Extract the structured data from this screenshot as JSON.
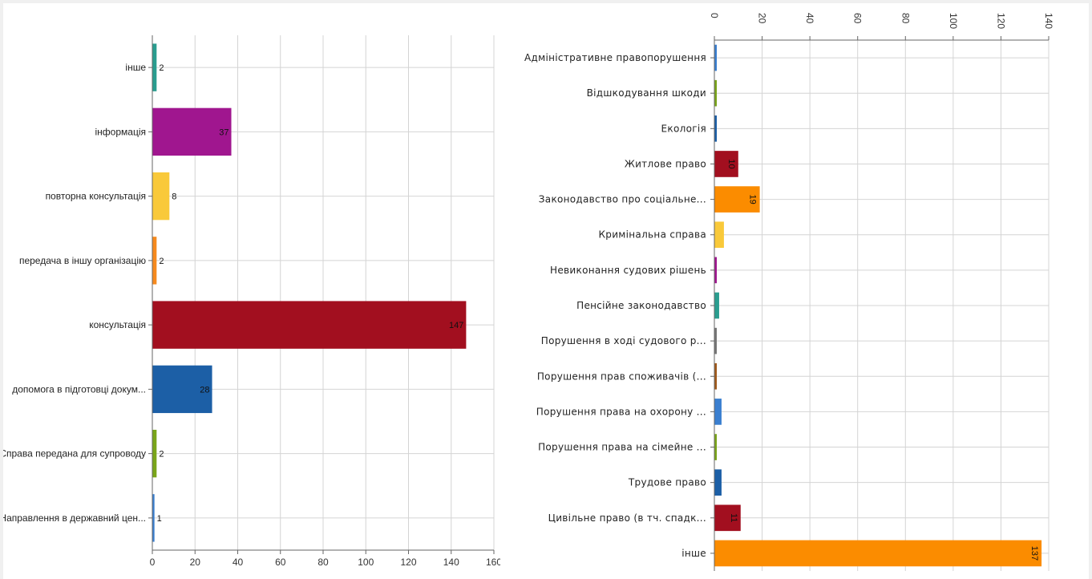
{
  "chart_data": [
    {
      "type": "bar",
      "orientation": "horizontal",
      "categories": [
        "інше",
        "інформація",
        "повторна консультація",
        "передача в іншу організацію",
        "консультація",
        "допомога в підготовці докум...",
        "Справа передана для супроводу",
        "Направлення в державний цен..."
      ],
      "values": [
        2,
        37,
        8,
        2,
        147,
        28,
        2,
        1
      ],
      "value_labels": [
        "2",
        "37",
        "8",
        "2",
        "147",
        "28",
        "2",
        "1"
      ],
      "colors": [
        "#2a9d8f",
        "#a0168f",
        "#f9c93a",
        "#f68a1e",
        "#a20f1f",
        "#1c5fa6",
        "#7aa51a",
        "#3a7fd0"
      ],
      "ticks": [
        "0",
        "20",
        "40",
        "60",
        "80",
        "100",
        "120",
        "140",
        "160"
      ],
      "xlim": [
        0,
        160
      ],
      "axis_position": "bottom",
      "grid": true
    },
    {
      "type": "bar",
      "orientation": "horizontal",
      "categories": [
        "Адміністративне правопорушення",
        "Відшкодування шкоди",
        "Екологія",
        "Житлове право",
        "Законодавство про соціальне...",
        "Кримінальна справа",
        "Невиконання судових рішень",
        "Пенсійне законодавство",
        "Порушення в ході судового р...",
        "Порушення прав споживачів (...",
        "Порушення права на охорону ...",
        "Порушення права на сімейне ...",
        "Трудове право",
        "Цивільне право (в тч. спадк...",
        "інше"
      ],
      "values": [
        1,
        1,
        1,
        10,
        19,
        4,
        1,
        2,
        1,
        1,
        3,
        1,
        3,
        11,
        137
      ],
      "value_labels": [
        "",
        "",
        "",
        "10",
        "19",
        "",
        "",
        "",
        "",
        "",
        "",
        "",
        "",
        "11",
        "137"
      ],
      "colors": [
        "#3a7fd0",
        "#7aa51a",
        "#1c5fa6",
        "#a20f1f",
        "#fb8c00",
        "#f9c93a",
        "#a0168f",
        "#2a9d8f",
        "#777777",
        "#a0591a",
        "#3a7fd0",
        "#7aa51a",
        "#1c5fa6",
        "#a20f1f",
        "#fb8c00"
      ],
      "ticks": [
        "0",
        "20",
        "40",
        "60",
        "80",
        "100",
        "120",
        "140"
      ],
      "xlim": [
        0,
        140
      ],
      "axis_position": "top",
      "tick_label_rotation": "vertical",
      "grid": true
    }
  ]
}
